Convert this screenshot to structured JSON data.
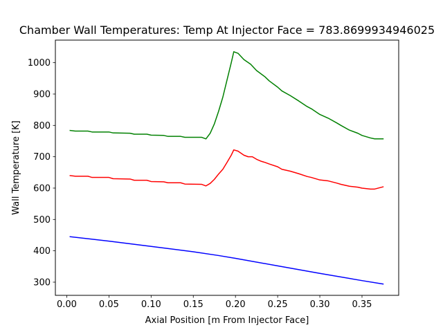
{
  "chart_data": {
    "type": "line",
    "title": "Chamber Wall Temperatures: Temp At Injector Face = 783.8699934946025",
    "xlabel": "Axial Position [m From Injector Face]",
    "ylabel": "Wall Temperature [K]",
    "xlim": [
      -0.0135,
      0.3935
    ],
    "ylim": [
      258,
      1072
    ],
    "xticks": [
      0.0,
      0.05,
      0.1,
      0.15,
      0.2,
      0.25,
      0.3,
      0.35
    ],
    "xtick_labels": [
      "0.00",
      "0.05",
      "0.10",
      "0.15",
      "0.20",
      "0.25",
      "0.30",
      "0.35"
    ],
    "yticks": [
      300,
      400,
      500,
      600,
      700,
      800,
      900,
      1000
    ],
    "ytick_labels": [
      "300",
      "400",
      "500",
      "600",
      "700",
      "800",
      "900",
      "1000"
    ],
    "grid": false,
    "series": [
      {
        "color": "#008000",
        "points": [
          [
            0.004,
            784
          ],
          [
            0.01,
            782
          ],
          [
            0.025,
            782
          ],
          [
            0.03,
            779
          ],
          [
            0.05,
            779
          ],
          [
            0.055,
            776
          ],
          [
            0.075,
            775
          ],
          [
            0.08,
            772
          ],
          [
            0.095,
            772
          ],
          [
            0.1,
            769
          ],
          [
            0.115,
            768
          ],
          [
            0.12,
            765
          ],
          [
            0.135,
            765
          ],
          [
            0.14,
            762
          ],
          [
            0.16,
            762
          ],
          [
            0.165,
            757
          ],
          [
            0.17,
            775
          ],
          [
            0.175,
            805
          ],
          [
            0.18,
            845
          ],
          [
            0.185,
            890
          ],
          [
            0.19,
            945
          ],
          [
            0.195,
            1000
          ],
          [
            0.198,
            1035
          ],
          [
            0.203,
            1030
          ],
          [
            0.21,
            1010
          ],
          [
            0.218,
            995
          ],
          [
            0.225,
            975
          ],
          [
            0.235,
            955
          ],
          [
            0.24,
            942
          ],
          [
            0.25,
            922
          ],
          [
            0.255,
            910
          ],
          [
            0.265,
            895
          ],
          [
            0.275,
            878
          ],
          [
            0.285,
            860
          ],
          [
            0.29,
            853
          ],
          [
            0.3,
            835
          ],
          [
            0.31,
            823
          ],
          [
            0.32,
            808
          ],
          [
            0.325,
            800
          ],
          [
            0.335,
            785
          ],
          [
            0.345,
            775
          ],
          [
            0.35,
            768
          ],
          [
            0.36,
            760
          ],
          [
            0.365,
            757
          ],
          [
            0.375,
            757
          ]
        ]
      },
      {
        "color": "#ff0000",
        "points": [
          [
            0.004,
            640
          ],
          [
            0.01,
            638
          ],
          [
            0.025,
            638
          ],
          [
            0.03,
            634
          ],
          [
            0.05,
            634
          ],
          [
            0.055,
            630
          ],
          [
            0.075,
            629
          ],
          [
            0.08,
            625
          ],
          [
            0.095,
            625
          ],
          [
            0.1,
            621
          ],
          [
            0.115,
            620
          ],
          [
            0.12,
            617
          ],
          [
            0.135,
            617
          ],
          [
            0.14,
            613
          ],
          [
            0.16,
            612
          ],
          [
            0.165,
            607
          ],
          [
            0.17,
            615
          ],
          [
            0.175,
            628
          ],
          [
            0.18,
            645
          ],
          [
            0.185,
            660
          ],
          [
            0.19,
            682
          ],
          [
            0.195,
            705
          ],
          [
            0.198,
            722
          ],
          [
            0.203,
            718
          ],
          [
            0.21,
            705
          ],
          [
            0.215,
            700
          ],
          [
            0.22,
            700
          ],
          [
            0.225,
            692
          ],
          [
            0.23,
            686
          ],
          [
            0.235,
            682
          ],
          [
            0.24,
            677
          ],
          [
            0.25,
            668
          ],
          [
            0.255,
            660
          ],
          [
            0.265,
            654
          ],
          [
            0.275,
            646
          ],
          [
            0.285,
            637
          ],
          [
            0.29,
            634
          ],
          [
            0.3,
            626
          ],
          [
            0.31,
            623
          ],
          [
            0.32,
            616
          ],
          [
            0.325,
            612
          ],
          [
            0.335,
            606
          ],
          [
            0.345,
            603
          ],
          [
            0.35,
            600
          ],
          [
            0.36,
            597
          ],
          [
            0.365,
            597
          ],
          [
            0.375,
            604
          ]
        ]
      },
      {
        "color": "#0000ff",
        "points": [
          [
            0.004,
            445
          ],
          [
            0.05,
            431
          ],
          [
            0.1,
            414
          ],
          [
            0.15,
            397
          ],
          [
            0.18,
            385
          ],
          [
            0.2,
            376
          ],
          [
            0.25,
            352
          ],
          [
            0.3,
            328
          ],
          [
            0.35,
            305
          ],
          [
            0.375,
            294
          ]
        ]
      }
    ]
  }
}
